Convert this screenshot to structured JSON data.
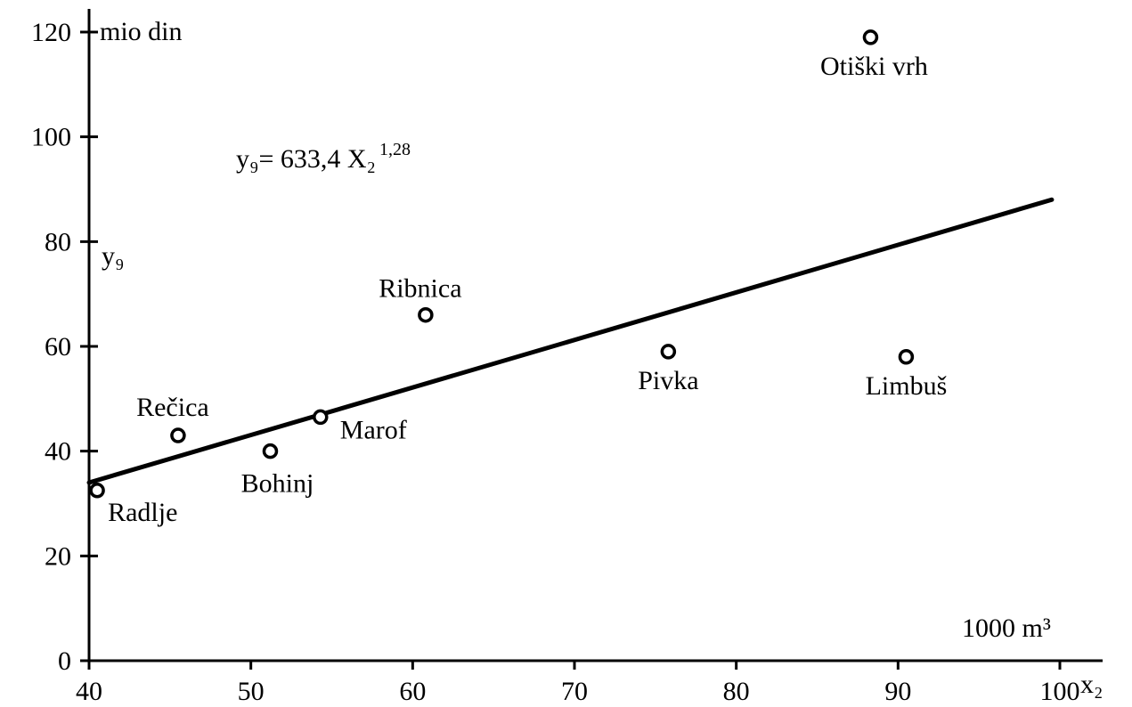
{
  "chart_data": {
    "type": "scatter",
    "title": "",
    "xlabel": "x₂",
    "x_unit": "1000 m³",
    "ylabel": "y₉",
    "y_unit": "mio din",
    "equation": {
      "lhs": "y₉",
      "coefficient": "633,4",
      "variable": "X₂",
      "exponent": "1,28"
    },
    "xlim": [
      40,
      100
    ],
    "ylim": [
      0,
      120
    ],
    "x_ticks": [
      40,
      50,
      60,
      70,
      80,
      90,
      100
    ],
    "y_ticks": [
      0,
      20,
      40,
      60,
      80,
      100,
      120
    ],
    "grid": false,
    "points": [
      {
        "name": "Radlje",
        "x": 40.5,
        "y": 32.5
      },
      {
        "name": "Rečica",
        "x": 45.5,
        "y": 43
      },
      {
        "name": "Bohinj",
        "x": 51.2,
        "y": 40
      },
      {
        "name": "Marof",
        "x": 54.3,
        "y": 46.5
      },
      {
        "name": "Ribnica",
        "x": 60.8,
        "y": 66
      },
      {
        "name": "Pivka",
        "x": 75.8,
        "y": 59
      },
      {
        "name": "Limbuš",
        "x": 90.5,
        "y": 58
      },
      {
        "name": "Otiški vrh",
        "x": 88.3,
        "y": 119
      }
    ],
    "fit_line": [
      {
        "x": 40,
        "y": 34
      },
      {
        "x": 99.5,
        "y": 88
      }
    ]
  }
}
